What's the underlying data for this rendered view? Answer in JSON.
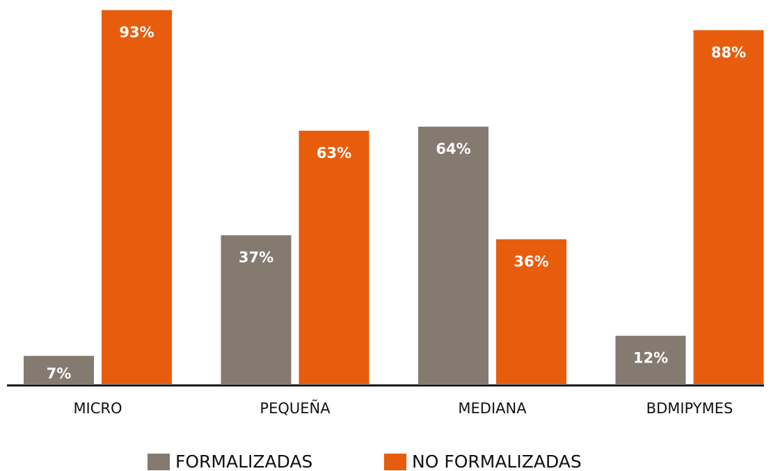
{
  "chart_data": {
    "type": "bar",
    "categories": [
      "MICRO",
      "PEQUEÑA",
      "MEDIANA",
      "BDMIPYMES"
    ],
    "series": [
      {
        "name": "FORMALIZADAS",
        "color": "#857a70",
        "values": [
          7,
          37,
          64,
          12
        ],
        "value_labels": [
          "7%",
          "37%",
          "64%",
          "12%"
        ]
      },
      {
        "name": "NO FORMALIZADAS",
        "color": "#e85d0d",
        "values": [
          93,
          63,
          36,
          88
        ],
        "value_labels": [
          "93%",
          "63%",
          "36%",
          "88%"
        ]
      }
    ],
    "legend": "bottom"
  }
}
